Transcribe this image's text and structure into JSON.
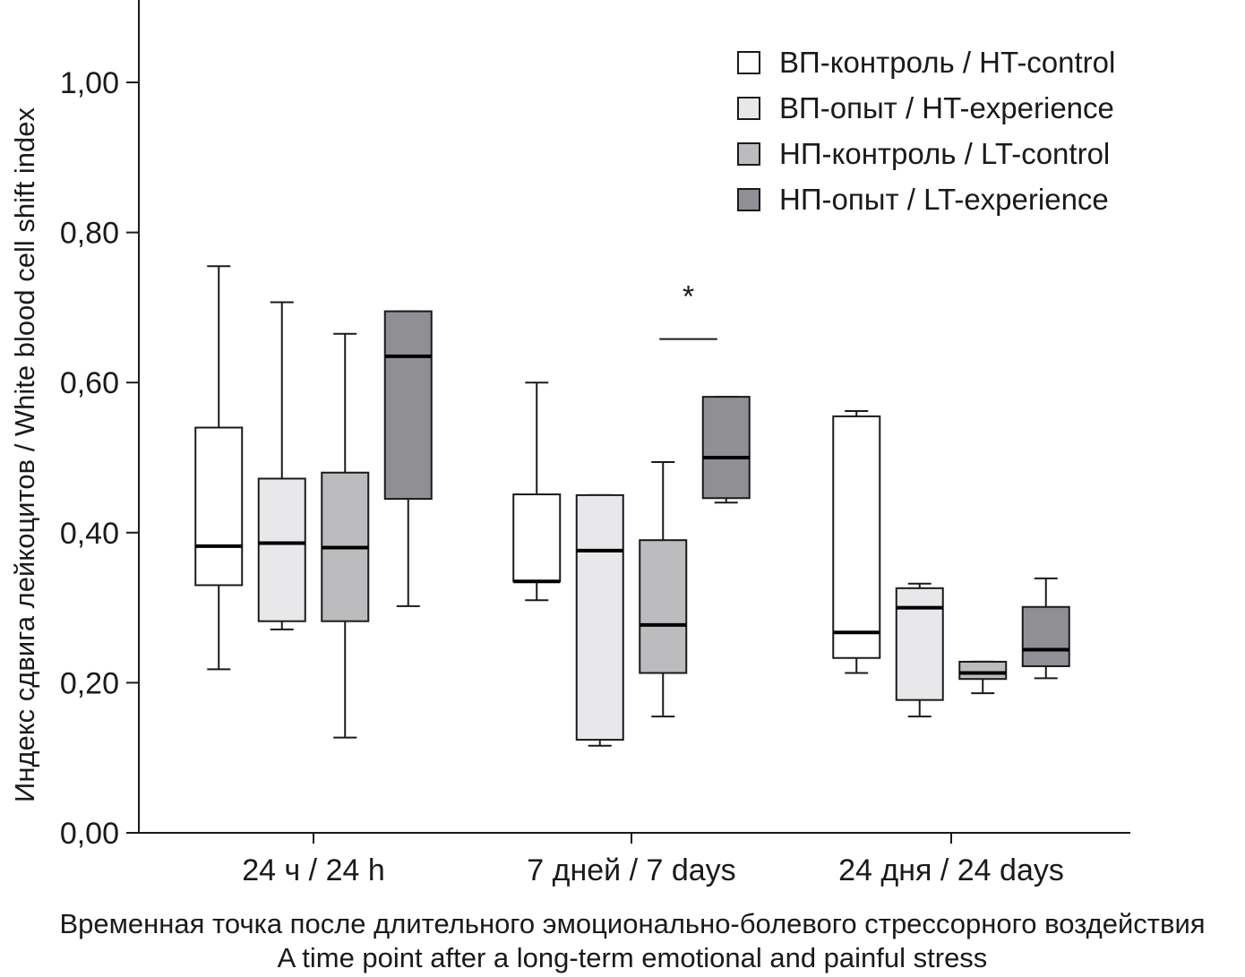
{
  "chart_data": {
    "type": "box",
    "ylabel": "Индекс сдвига лейкоцитов / White blood cell shift index",
    "xlabel_lines": [
      "Временная точка после длительного эмоционально-болевого стрессорного воздействия",
      "A time point after a long-term emotional and painful stress"
    ],
    "ylim": [
      0,
      1.1
    ],
    "yticks": [
      0.0,
      0.2,
      0.4,
      0.6,
      0.8,
      1.0
    ],
    "ytick_labels": [
      "0,00",
      "0,20",
      "0,40",
      "0,60",
      "0,80",
      "1,00"
    ],
    "categories": [
      "24 ч / 24 h",
      "7 дней / 7 days",
      "24 дня / 24 days"
    ],
    "legend_position": "top-right",
    "series": [
      {
        "name": "ВП-контроль / HT-control",
        "color": "#ffffff",
        "boxes": [
          {
            "min": 0.218,
            "q1": 0.33,
            "median": 0.382,
            "q3": 0.54,
            "max": 0.755
          },
          {
            "min": 0.31,
            "q1": 0.335,
            "median": 0.335,
            "q3": 0.451,
            "max": 0.6
          },
          {
            "min": 0.213,
            "q1": 0.233,
            "median": 0.267,
            "q3": 0.555,
            "max": 0.562
          }
        ]
      },
      {
        "name": "ВП-опыт / HT-experience",
        "color": "#e8e8ea",
        "boxes": [
          {
            "min": 0.271,
            "q1": 0.282,
            "median": 0.386,
            "q3": 0.472,
            "max": 0.707
          },
          {
            "min": 0.116,
            "q1": 0.124,
            "median": 0.376,
            "q3": 0.45,
            "max": 0.45
          },
          {
            "min": 0.155,
            "q1": 0.177,
            "median": 0.3,
            "q3": 0.326,
            "max": 0.332
          }
        ]
      },
      {
        "name": "НП-контроль / LT-control",
        "color": "#bcbcbe",
        "boxes": [
          {
            "min": 0.127,
            "q1": 0.282,
            "median": 0.38,
            "q3": 0.48,
            "max": 0.665
          },
          {
            "min": 0.155,
            "q1": 0.213,
            "median": 0.277,
            "q3": 0.39,
            "max": 0.494
          },
          {
            "min": 0.186,
            "q1": 0.205,
            "median": 0.213,
            "q3": 0.228,
            "max": 0.228
          }
        ]
      },
      {
        "name": "НП-опыт / LT-experience",
        "color": "#909094",
        "boxes": [
          {
            "min": 0.302,
            "q1": 0.445,
            "median": 0.635,
            "q3": 0.695,
            "max": 0.695
          },
          {
            "min": 0.44,
            "q1": 0.446,
            "median": 0.5,
            "q3": 0.581,
            "max": 0.581
          },
          {
            "min": 0.206,
            "q1": 0.222,
            "median": 0.244,
            "q3": 0.301,
            "max": 0.339
          }
        ]
      }
    ],
    "annotations": [
      {
        "text": "*",
        "category": 1,
        "series_from": 2,
        "series_to": 3,
        "bracket_y": 0.658,
        "text_y": 0.725
      }
    ]
  }
}
